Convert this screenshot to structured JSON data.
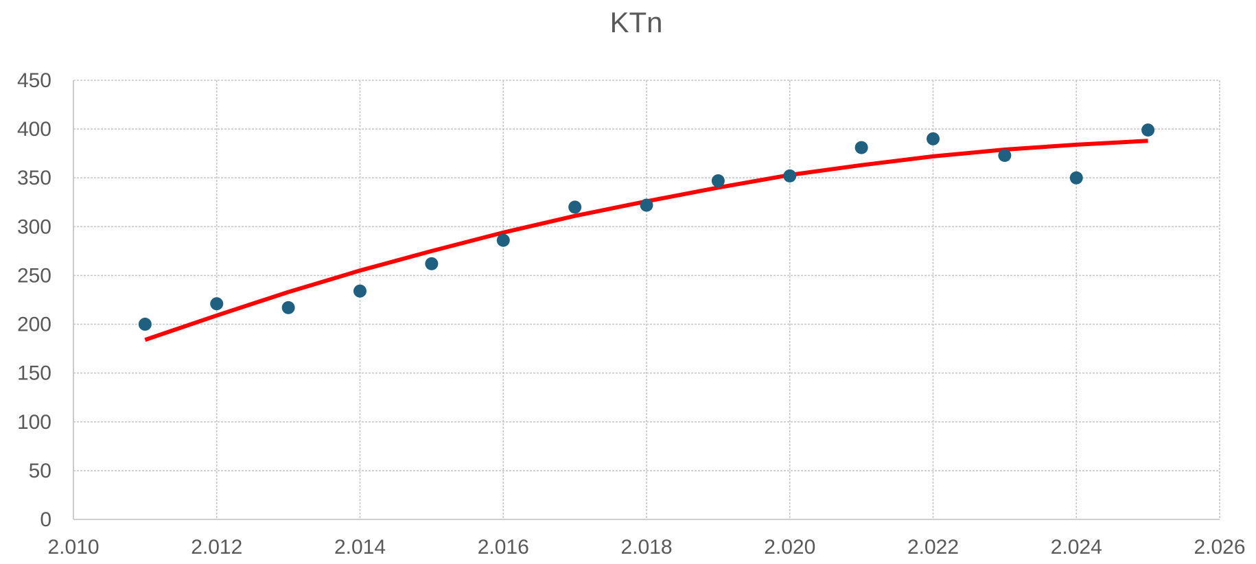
{
  "chart_data": {
    "type": "scatter",
    "title": "KTn",
    "xlabel": "",
    "ylabel": "",
    "xlim": [
      2010,
      2026
    ],
    "ylim": [
      0,
      450
    ],
    "x_ticks": [
      2010,
      2012,
      2014,
      2016,
      2018,
      2020,
      2022,
      2024,
      2026
    ],
    "x_tick_labels": [
      "2.010",
      "2.012",
      "2.014",
      "2.016",
      "2.018",
      "2.020",
      "2.022",
      "2.024",
      "2.026"
    ],
    "y_ticks": [
      0,
      50,
      100,
      150,
      200,
      250,
      300,
      350,
      400,
      450
    ],
    "y_tick_labels": [
      "0",
      "50",
      "100",
      "150",
      "200",
      "250",
      "300",
      "350",
      "400",
      "450"
    ],
    "grid": true,
    "legend": "none",
    "series": [
      {
        "kind": "points",
        "color": "#1f5f80",
        "x": [
          2011,
          2012,
          2013,
          2014,
          2015,
          2016,
          2017,
          2018,
          2019,
          2020,
          2021,
          2022,
          2023,
          2024,
          2025
        ],
        "y": [
          200,
          221,
          217,
          234,
          262,
          286,
          320,
          322,
          347,
          352,
          381,
          390,
          373,
          350,
          399
        ]
      },
      {
        "kind": "trendline",
        "color": "#ff0000",
        "x": [
          2011,
          2012,
          2013,
          2014,
          2015,
          2016,
          2017,
          2018,
          2019,
          2020,
          2021,
          2022,
          2023,
          2024,
          2025
        ],
        "y": [
          184,
          209,
          233,
          255,
          275,
          294,
          311,
          326,
          340,
          353,
          363,
          372,
          379,
          384,
          388
        ]
      }
    ]
  }
}
